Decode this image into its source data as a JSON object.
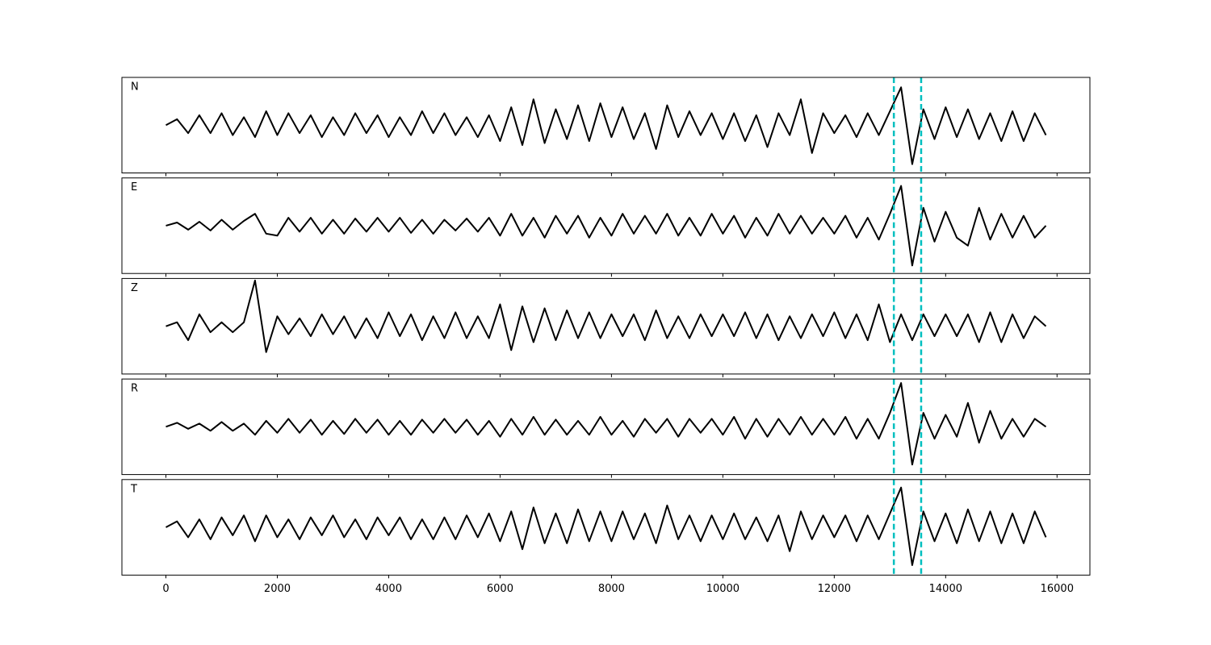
{
  "chart_data": {
    "type": "line",
    "x": [
      0,
      200,
      400,
      600,
      800,
      1000,
      1200,
      1400,
      1600,
      1800,
      2000,
      2200,
      2400,
      2600,
      2800,
      3000,
      3200,
      3400,
      3600,
      3800,
      4000,
      4200,
      4400,
      4600,
      4800,
      5000,
      5200,
      5400,
      5600,
      5800,
      6000,
      6200,
      6400,
      6600,
      6800,
      7000,
      7200,
      7400,
      7600,
      7800,
      8000,
      8200,
      8400,
      8600,
      8800,
      9000,
      9200,
      9400,
      9600,
      9800,
      10000,
      10200,
      10400,
      10600,
      10800,
      11000,
      11200,
      11400,
      11600,
      11800,
      12000,
      12200,
      12400,
      12600,
      12800,
      13000,
      13200,
      13400,
      13600,
      13800,
      14000,
      14200,
      14400,
      14600,
      14800,
      15000,
      15200,
      15400,
      15600,
      15800
    ],
    "xlim": [
      -790,
      16590
    ],
    "xticks": [
      0,
      2000,
      4000,
      6000,
      8000,
      10000,
      12000,
      14000,
      16000
    ],
    "ylim": [
      -1.2,
      1.2
    ],
    "color": "#000000",
    "vlines": {
      "color": "#00bfbf",
      "x": [
        13070,
        13560
      ]
    },
    "series": [
      {
        "name": "N",
        "values": [
          0.0,
          0.15,
          -0.2,
          0.25,
          -0.2,
          0.3,
          -0.25,
          0.2,
          -0.3,
          0.35,
          -0.25,
          0.3,
          -0.2,
          0.25,
          -0.3,
          0.2,
          -0.25,
          0.3,
          -0.2,
          0.25,
          -0.3,
          0.2,
          -0.25,
          0.35,
          -0.2,
          0.3,
          -0.25,
          0.2,
          -0.3,
          0.25,
          -0.4,
          0.45,
          -0.5,
          0.65,
          -0.45,
          0.4,
          -0.35,
          0.5,
          -0.4,
          0.55,
          -0.3,
          0.45,
          -0.35,
          0.3,
          -0.6,
          0.5,
          -0.3,
          0.35,
          -0.25,
          0.3,
          -0.35,
          0.3,
          -0.4,
          0.25,
          -0.55,
          0.3,
          -0.25,
          0.65,
          -0.7,
          0.3,
          -0.2,
          0.25,
          -0.3,
          0.3,
          -0.25,
          0.35,
          0.95,
          -0.98,
          0.4,
          -0.35,
          0.45,
          -0.3,
          0.4,
          -0.35,
          0.3,
          -0.4,
          0.35,
          -0.4,
          0.3,
          -0.25
        ]
      },
      {
        "name": "E",
        "values": [
          0.0,
          0.08,
          -0.1,
          0.1,
          -0.12,
          0.15,
          -0.1,
          0.12,
          0.3,
          -0.2,
          -0.25,
          0.2,
          -0.15,
          0.2,
          -0.2,
          0.15,
          -0.2,
          0.18,
          -0.15,
          0.2,
          -0.15,
          0.2,
          -0.18,
          0.15,
          -0.2,
          0.15,
          -0.12,
          0.18,
          -0.15,
          0.2,
          -0.25,
          0.3,
          -0.25,
          0.2,
          -0.3,
          0.25,
          -0.2,
          0.25,
          -0.3,
          0.2,
          -0.25,
          0.3,
          -0.2,
          0.25,
          -0.2,
          0.3,
          -0.25,
          0.2,
          -0.25,
          0.3,
          -0.2,
          0.25,
          -0.3,
          0.2,
          -0.25,
          0.3,
          -0.2,
          0.25,
          -0.2,
          0.2,
          -0.2,
          0.25,
          -0.3,
          0.2,
          -0.35,
          0.3,
          1.0,
          -1.0,
          0.45,
          -0.4,
          0.35,
          -0.3,
          -0.5,
          0.45,
          -0.35,
          0.3,
          -0.3,
          0.25,
          -0.3,
          0.0
        ]
      },
      {
        "name": "Z",
        "values": [
          0.0,
          0.1,
          -0.35,
          0.3,
          -0.15,
          0.1,
          -0.15,
          0.1,
          1.15,
          -0.65,
          0.25,
          -0.2,
          0.2,
          -0.25,
          0.3,
          -0.2,
          0.25,
          -0.3,
          0.2,
          -0.3,
          0.35,
          -0.25,
          0.3,
          -0.35,
          0.25,
          -0.3,
          0.35,
          -0.3,
          0.25,
          -0.3,
          0.55,
          -0.6,
          0.5,
          -0.4,
          0.45,
          -0.35,
          0.4,
          -0.3,
          0.35,
          -0.3,
          0.3,
          -0.25,
          0.3,
          -0.35,
          0.4,
          -0.3,
          0.25,
          -0.3,
          0.3,
          -0.25,
          0.3,
          -0.25,
          0.35,
          -0.3,
          0.3,
          -0.35,
          0.25,
          -0.3,
          0.3,
          -0.25,
          0.35,
          -0.3,
          0.3,
          -0.35,
          0.55,
          -0.4,
          0.3,
          -0.35,
          0.3,
          -0.25,
          0.3,
          -0.25,
          0.3,
          -0.4,
          0.35,
          -0.4,
          0.3,
          -0.3,
          0.25,
          0.0
        ]
      },
      {
        "name": "R",
        "values": [
          0.0,
          0.1,
          -0.05,
          0.08,
          -0.1,
          0.12,
          -0.1,
          0.08,
          -0.2,
          0.15,
          -0.15,
          0.2,
          -0.15,
          0.18,
          -0.2,
          0.15,
          -0.18,
          0.2,
          -0.15,
          0.18,
          -0.2,
          0.15,
          -0.2,
          0.18,
          -0.15,
          0.2,
          -0.15,
          0.18,
          -0.2,
          0.15,
          -0.25,
          0.2,
          -0.2,
          0.25,
          -0.2,
          0.18,
          -0.2,
          0.15,
          -0.2,
          0.25,
          -0.2,
          0.15,
          -0.25,
          0.2,
          -0.15,
          0.2,
          -0.25,
          0.2,
          -0.15,
          0.2,
          -0.2,
          0.25,
          -0.3,
          0.2,
          -0.25,
          0.2,
          -0.2,
          0.25,
          -0.2,
          0.2,
          -0.2,
          0.25,
          -0.3,
          0.2,
          -0.3,
          0.35,
          1.1,
          -0.95,
          0.35,
          -0.3,
          0.3,
          -0.25,
          0.6,
          -0.4,
          0.4,
          -0.3,
          0.2,
          -0.25,
          0.2,
          0.0
        ]
      },
      {
        "name": "T",
        "values": [
          0.0,
          0.15,
          -0.25,
          0.2,
          -0.3,
          0.25,
          -0.2,
          0.3,
          -0.35,
          0.3,
          -0.25,
          0.2,
          -0.3,
          0.25,
          -0.2,
          0.3,
          -0.25,
          0.2,
          -0.3,
          0.25,
          -0.2,
          0.25,
          -0.3,
          0.2,
          -0.3,
          0.25,
          -0.3,
          0.3,
          -0.25,
          0.35,
          -0.35,
          0.4,
          -0.55,
          0.5,
          -0.4,
          0.35,
          -0.4,
          0.45,
          -0.35,
          0.4,
          -0.35,
          0.4,
          -0.3,
          0.35,
          -0.4,
          0.55,
          -0.3,
          0.3,
          -0.35,
          0.3,
          -0.3,
          0.35,
          -0.3,
          0.25,
          -0.35,
          0.3,
          -0.6,
          0.4,
          -0.3,
          0.3,
          -0.25,
          0.3,
          -0.35,
          0.3,
          -0.3,
          0.35,
          1.0,
          -0.95,
          0.4,
          -0.35,
          0.35,
          -0.4,
          0.45,
          -0.35,
          0.4,
          -0.4,
          0.35,
          -0.4,
          0.4,
          -0.25
        ]
      }
    ]
  }
}
